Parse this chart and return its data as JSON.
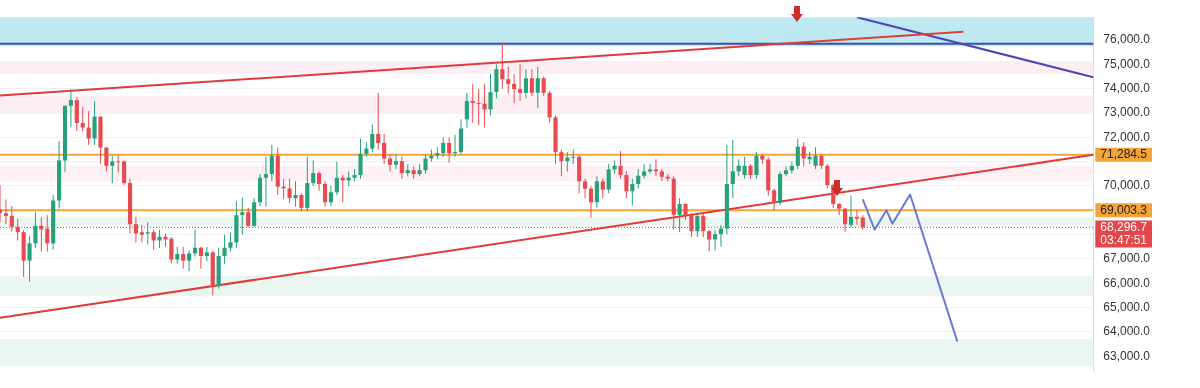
{
  "chart_data": {
    "type": "candlestick",
    "categories": [
      null,
      null,
      null,
      null,
      null,
      null,
      null,
      null,
      null,
      null,
      null,
      null,
      null,
      null,
      null,
      null,
      null,
      null,
      null,
      null,
      null,
      null,
      null,
      null,
      null,
      null,
      null,
      null,
      null,
      null,
      null,
      null,
      null,
      null,
      null,
      null,
      null,
      null,
      null,
      null,
      null,
      null,
      null,
      null,
      null,
      null,
      null,
      null,
      null,
      null,
      null,
      null,
      null,
      null,
      null,
      null,
      null,
      null,
      null,
      null,
      null,
      null,
      null,
      null,
      null,
      null,
      null,
      null,
      null,
      null,
      null,
      null,
      null,
      null,
      null,
      null,
      null,
      null,
      null,
      null,
      null,
      null,
      null,
      null,
      null,
      null,
      null,
      null,
      null,
      null,
      null,
      null,
      null,
      null,
      null,
      null,
      null,
      null,
      null,
      null,
      null,
      null,
      null,
      null,
      null,
      null,
      null,
      null,
      null,
      null,
      null,
      null,
      null,
      null,
      null,
      null,
      null,
      null,
      null,
      null,
      null,
      null,
      null,
      null,
      null,
      null,
      null,
      null,
      null,
      null,
      null,
      null,
      null,
      null,
      null,
      null,
      null,
      null,
      null,
      null,
      null,
      null,
      null,
      null,
      null,
      null,
      null,
      null,
      null,
      null,
      null,
      null,
      null,
      null,
      null,
      null,
      null,
      null,
      null,
      null,
      null,
      null,
      null,
      null,
      null,
      null,
      null,
      null,
      null,
      null,
      null,
      null,
      null,
      null,
      null,
      null,
      null,
      null,
      null,
      null,
      null,
      null,
      null,
      null,
      null,
      null
    ],
    "series": [
      {
        "type": "line",
        "color": "#e03c3c",
        "values": [
          73720,
          null,
          null,
          null,
          null,
          null,
          null,
          null,
          null,
          null,
          null,
          null,
          null,
          null,
          null,
          null,
          null,
          null,
          null,
          null,
          null,
          null,
          null,
          null,
          null,
          null,
          null,
          null,
          null,
          null,
          null,
          null,
          null,
          null,
          null,
          null,
          null,
          null,
          null,
          null,
          null,
          null,
          null,
          null,
          null,
          null,
          null,
          null,
          null,
          null,
          null,
          null,
          null,
          null,
          null,
          null,
          null,
          null,
          null,
          null,
          null,
          null,
          null,
          null,
          null,
          null,
          null,
          null,
          null,
          null,
          null,
          null,
          null,
          null,
          null,
          null,
          null,
          null,
          null,
          null,
          null,
          null,
          null,
          null,
          null,
          null,
          null,
          null,
          null,
          null,
          null,
          null,
          null,
          null,
          null,
          null,
          null,
          null,
          null,
          null,
          null,
          null,
          null,
          null,
          null,
          null,
          null,
          null,
          null,
          null,
          null,
          null,
          null,
          null,
          null,
          null,
          null,
          null,
          null,
          null,
          null,
          null,
          null,
          null,
          null,
          null,
          null,
          null,
          null,
          null,
          null,
          null,
          null,
          null,
          null,
          null,
          null,
          null,
          null,
          null,
          null,
          null,
          null,
          null,
          null,
          null,
          null,
          null,
          null,
          null,
          null,
          null,
          null,
          null,
          null,
          null,
          null,
          null,
          null,
          null,
          null,
          null,
          null,
          76340,
          null,
          null,
          null,
          null,
          null,
          null,
          null,
          null,
          null,
          null,
          null,
          null,
          null,
          null,
          null,
          null,
          null,
          null,
          null,
          null,
          null,
          null
        ]
      },
      {
        "type": "line",
        "color": "#e03c3c",
        "values": [
          64580,
          null,
          null,
          null,
          null,
          null,
          null,
          null,
          null,
          null,
          null,
          null,
          null,
          null,
          null,
          null,
          null,
          null,
          null,
          null,
          null,
          null,
          null,
          null,
          null,
          null,
          null,
          null,
          null,
          null,
          null,
          null,
          null,
          null,
          null,
          null,
          null,
          null,
          null,
          null,
          null,
          null,
          null,
          null,
          null,
          null,
          null,
          null,
          null,
          null,
          null,
          null,
          null,
          null,
          null,
          null,
          null,
          null,
          null,
          null,
          null,
          null,
          null,
          null,
          null,
          null,
          null,
          null,
          null,
          null,
          null,
          null,
          null,
          null,
          null,
          null,
          null,
          null,
          null,
          null,
          null,
          null,
          null,
          null,
          null,
          null,
          null,
          null,
          null,
          null,
          null,
          null,
          null,
          null,
          null,
          null,
          null,
          null,
          null,
          null,
          null,
          null,
          null,
          null,
          null,
          null,
          null,
          null,
          null,
          null,
          null,
          null,
          null,
          null,
          null,
          null,
          null,
          null,
          null,
          null,
          null,
          null,
          null,
          null,
          null,
          null,
          null,
          null,
          null,
          null,
          null,
          null,
          null,
          null,
          null,
          null,
          null,
          null,
          null,
          null,
          null,
          null,
          null,
          null,
          null,
          null,
          null,
          null,
          null,
          null,
          null,
          null,
          null,
          null,
          null,
          null,
          null,
          null,
          null,
          null,
          null,
          null,
          null,
          null,
          null,
          null,
          null,
          null,
          null,
          null,
          null,
          null,
          null,
          null,
          null,
          null,
          null,
          null,
          null,
          null,
          null,
          null,
          null,
          null,
          null,
          71280
        ]
      },
      {
        "type": "line",
        "color": "#5044b8",
        "values": [
          null,
          null,
          null,
          null,
          null,
          null,
          null,
          null,
          null,
          null,
          null,
          null,
          null,
          null,
          null,
          null,
          null,
          null,
          null,
          null,
          null,
          null,
          null,
          null,
          null,
          null,
          null,
          null,
          null,
          null,
          null,
          null,
          null,
          null,
          null,
          null,
          null,
          null,
          null,
          null,
          null,
          null,
          null,
          null,
          null,
          null,
          null,
          null,
          null,
          null,
          null,
          null,
          null,
          null,
          null,
          null,
          null,
          null,
          null,
          null,
          null,
          null,
          null,
          null,
          null,
          null,
          null,
          null,
          null,
          null,
          null,
          null,
          null,
          null,
          null,
          null,
          null,
          null,
          null,
          null,
          null,
          null,
          null,
          null,
          null,
          null,
          null,
          null,
          null,
          null,
          null,
          null,
          null,
          null,
          null,
          null,
          null,
          null,
          null,
          null,
          null,
          null,
          null,
          null,
          null,
          null,
          null,
          null,
          null,
          null,
          null,
          null,
          null,
          null,
          null,
          null,
          null,
          null,
          null,
          null,
          null,
          null,
          null,
          null,
          null,
          null,
          null,
          null,
          null,
          null,
          null,
          null,
          null,
          null,
          null,
          null,
          null,
          null,
          null,
          null,
          null,
          null,
          null,
          null,
          null,
          76940,
          null,
          null,
          null,
          null,
          null,
          null,
          null,
          null,
          null,
          null,
          null,
          null,
          null,
          null,
          null,
          null,
          null,
          null,
          null,
          null,
          null,
          null,
          null,
          null,
          null,
          null,
          null,
          null,
          null,
          null,
          null,
          null,
          null,
          null,
          null,
          null,
          null,
          null,
          null,
          74470
        ]
      },
      {
        "type": "line",
        "color": "#6a78d8",
        "values": [
          null,
          null,
          null,
          null,
          null,
          null,
          null,
          null,
          null,
          null,
          null,
          null,
          null,
          null,
          null,
          null,
          null,
          null,
          null,
          null,
          null,
          null,
          null,
          null,
          null,
          null,
          null,
          null,
          null,
          null,
          null,
          null,
          null,
          null,
          null,
          null,
          null,
          null,
          null,
          null,
          null,
          null,
          null,
          null,
          null,
          null,
          null,
          null,
          null,
          null,
          null,
          null,
          null,
          null,
          null,
          null,
          null,
          null,
          null,
          null,
          null,
          null,
          null,
          null,
          null,
          null,
          null,
          null,
          null,
          null,
          null,
          null,
          null,
          null,
          null,
          null,
          null,
          null,
          null,
          null,
          null,
          null,
          null,
          null,
          null,
          null,
          null,
          null,
          null,
          null,
          null,
          null,
          null,
          null,
          null,
          null,
          null,
          null,
          null,
          null,
          null,
          null,
          null,
          null,
          null,
          null,
          null,
          null,
          null,
          null,
          null,
          null,
          null,
          null,
          null,
          null,
          null,
          null,
          null,
          null,
          null,
          null,
          null,
          null,
          null,
          null,
          null,
          null,
          null,
          null,
          null,
          null,
          null,
          null,
          null,
          null,
          null,
          null,
          null,
          null,
          null,
          null,
          null,
          null,
          null,
          null,
          69450,
          null,
          68200,
          null,
          69000,
          68450,
          null,
          null,
          69650,
          null,
          null,
          null,
          null,
          null,
          null,
          null,
          63600,
          null,
          null,
          null,
          null,
          null,
          null,
          null,
          null,
          null,
          null,
          null,
          null,
          null,
          null,
          null,
          null,
          null,
          null,
          null,
          null,
          null,
          null,
          null
        ]
      },
      {
        "ohlc": [
          [
            69030,
            70040,
            68510,
            68880
          ],
          [
            68880,
            69440,
            68430,
            68770
          ],
          [
            68770,
            69180,
            68130,
            68320
          ],
          [
            68320,
            68660,
            67760,
            68100
          ],
          [
            68100,
            68200,
            66260,
            66930
          ],
          [
            66930,
            67950,
            66070,
            67640
          ],
          [
            67640,
            68920,
            67460,
            68360
          ],
          [
            68360,
            68700,
            67300,
            68210
          ],
          [
            68240,
            68800,
            67300,
            67640
          ],
          [
            67640,
            69630,
            67380,
            69400
          ],
          [
            69400,
            71840,
            69070,
            71050
          ],
          [
            71050,
            73300,
            70570,
            73300
          ],
          [
            73300,
            73980,
            72440,
            73530
          ],
          [
            73530,
            73640,
            72250,
            72590
          ],
          [
            72590,
            73260,
            72250,
            72400
          ],
          [
            72400,
            73080,
            71690,
            71950
          ],
          [
            71950,
            73490,
            71690,
            72850
          ],
          [
            72850,
            72850,
            70910,
            71580
          ],
          [
            71580,
            71580,
            70600,
            70830
          ],
          [
            70830,
            71240,
            70120,
            71010
          ],
          [
            71010,
            71280,
            70570,
            71000
          ],
          [
            71010,
            71050,
            70050,
            70120
          ],
          [
            70120,
            70300,
            68050,
            68430
          ],
          [
            68430,
            68730,
            67680,
            68050
          ],
          [
            68100,
            68400,
            67680,
            68000
          ],
          [
            68050,
            68500,
            67600,
            68100
          ],
          [
            68100,
            68210,
            67380,
            67760
          ],
          [
            67760,
            68200,
            67450,
            67910
          ],
          [
            67910,
            68060,
            67500,
            67800
          ],
          [
            67830,
            67900,
            66820,
            66970
          ],
          [
            66970,
            67500,
            66800,
            67200
          ],
          [
            67200,
            67500,
            66600,
            66930
          ],
          [
            66930,
            67350,
            66500,
            67230
          ],
          [
            67230,
            68210,
            67100,
            67460
          ],
          [
            67460,
            67500,
            66600,
            67120
          ],
          [
            67120,
            67500,
            66900,
            67270
          ],
          [
            67270,
            67350,
            65500,
            65880
          ],
          [
            65880,
            67460,
            65780,
            67120
          ],
          [
            67120,
            68000,
            66800,
            67460
          ],
          [
            67460,
            68100,
            67300,
            67680
          ],
          [
            67680,
            69370,
            67460,
            68800
          ],
          [
            68800,
            69520,
            68000,
            68920
          ],
          [
            68920,
            69100,
            68300,
            68360
          ],
          [
            68360,
            69500,
            68300,
            69330
          ],
          [
            69330,
            70490,
            69180,
            70340
          ],
          [
            70340,
            71200,
            69150,
            70490
          ],
          [
            70490,
            71690,
            70190,
            71240
          ],
          [
            71240,
            71580,
            69630,
            69970
          ],
          [
            69970,
            70300,
            69450,
            69900
          ],
          [
            69900,
            70300,
            69300,
            69500
          ],
          [
            69500,
            70200,
            69150,
            69630
          ],
          [
            69630,
            69700,
            68960,
            69100
          ],
          [
            69100,
            71200,
            68960,
            70120
          ],
          [
            70120,
            71050,
            70000,
            70530
          ],
          [
            70530,
            70600,
            69800,
            70080
          ],
          [
            70080,
            70200,
            69150,
            69330
          ],
          [
            69330,
            70000,
            69180,
            69740
          ],
          [
            69740,
            71000,
            69630,
            70340
          ],
          [
            70340,
            70450,
            69330,
            70230
          ],
          [
            70230,
            70600,
            70000,
            70340
          ],
          [
            70340,
            70700,
            70200,
            70450
          ],
          [
            70450,
            71950,
            70300,
            71320
          ],
          [
            71320,
            71800,
            71200,
            71540
          ],
          [
            71540,
            72520,
            71400,
            72140
          ],
          [
            72140,
            73830,
            71500,
            71770
          ],
          [
            71770,
            72140,
            70900,
            71130
          ],
          [
            71130,
            71300,
            70600,
            70870
          ],
          [
            70870,
            71300,
            70700,
            71020
          ],
          [
            71020,
            71200,
            70300,
            70530
          ],
          [
            70530,
            70900,
            70400,
            70650
          ],
          [
            70650,
            70800,
            70300,
            70490
          ],
          [
            70490,
            70900,
            70400,
            70650
          ],
          [
            70650,
            71300,
            70500,
            71130
          ],
          [
            71130,
            71500,
            71000,
            71240
          ],
          [
            71240,
            71600,
            71100,
            71350
          ],
          [
            71350,
            72000,
            71200,
            71770
          ],
          [
            71770,
            72000,
            70950,
            71350
          ],
          [
            71350,
            72100,
            71200,
            71400
          ],
          [
            71400,
            72740,
            71300,
            72360
          ],
          [
            72740,
            73830,
            72400,
            73490
          ],
          [
            73490,
            74200,
            72600,
            73410
          ],
          [
            73410,
            73980,
            72500,
            73380
          ],
          [
            73380,
            74200,
            72400,
            73150
          ],
          [
            73150,
            74610,
            72900,
            73860
          ],
          [
            73860,
            75000,
            73600,
            74800
          ],
          [
            74800,
            75900,
            74000,
            74390
          ],
          [
            74390,
            74900,
            73800,
            74200
          ],
          [
            74200,
            74600,
            73400,
            73980
          ],
          [
            73980,
            75000,
            73500,
            73830
          ],
          [
            73830,
            74800,
            73600,
            74430
          ],
          [
            74430,
            74800,
            73700,
            73830
          ],
          [
            73830,
            74900,
            73200,
            74430
          ],
          [
            74430,
            74500,
            73700,
            73830
          ],
          [
            73830,
            73900,
            72600,
            72820
          ],
          [
            72820,
            72900,
            70900,
            71390
          ],
          [
            71390,
            71500,
            70400,
            71020
          ],
          [
            71020,
            71400,
            70600,
            71170
          ],
          [
            71170,
            71500,
            70900,
            71200
          ],
          [
            71200,
            71300,
            69700,
            70190
          ],
          [
            70190,
            70300,
            69500,
            69890
          ],
          [
            69890,
            70000,
            68700,
            69330
          ],
          [
            69330,
            70400,
            69100,
            70190
          ],
          [
            70190,
            70300,
            69500,
            69850
          ],
          [
            69850,
            70900,
            69700,
            70680
          ],
          [
            70680,
            71050,
            70500,
            70830
          ],
          [
            70830,
            71440,
            70300,
            70450
          ],
          [
            70450,
            70600,
            69500,
            69780
          ],
          [
            69780,
            70300,
            69200,
            70080
          ],
          [
            70080,
            70700,
            69900,
            70420
          ],
          [
            70420,
            70900,
            70300,
            70600
          ],
          [
            70600,
            70900,
            70500,
            70680
          ],
          [
            70680,
            71100,
            70400,
            70600
          ],
          [
            70600,
            70700,
            70200,
            70380
          ],
          [
            70380,
            70500,
            70200,
            70300
          ],
          [
            70300,
            70400,
            68200,
            68810
          ],
          [
            68810,
            69500,
            68100,
            69260
          ],
          [
            69260,
            69300,
            68600,
            68810
          ],
          [
            68810,
            68900,
            67900,
            68140
          ],
          [
            68140,
            68900,
            67900,
            68770
          ],
          [
            68770,
            68900,
            67900,
            68140
          ],
          [
            68140,
            68200,
            67310,
            67800
          ],
          [
            67800,
            68200,
            67350,
            68020
          ],
          [
            68020,
            68400,
            67500,
            68250
          ],
          [
            68250,
            71700,
            68000,
            70080
          ],
          [
            70080,
            71900,
            69500,
            70600
          ],
          [
            70600,
            71100,
            70400,
            70830
          ],
          [
            70450,
            71200,
            70300,
            70830
          ],
          [
            70830,
            70900,
            70300,
            70450
          ],
          [
            70450,
            71400,
            70300,
            71240
          ],
          [
            71240,
            71300,
            70900,
            71090
          ],
          [
            71090,
            71200,
            69600,
            69820
          ],
          [
            69820,
            69900,
            68990,
            69300
          ],
          [
            69300,
            70600,
            69200,
            70490
          ],
          [
            70490,
            70800,
            70400,
            70640
          ],
          [
            70640,
            71000,
            70500,
            70830
          ],
          [
            70830,
            71950,
            70700,
            71620
          ],
          [
            71620,
            71800,
            70800,
            71130
          ],
          [
            71100,
            71400,
            70900,
            71200
          ],
          [
            70830,
            71600,
            70700,
            71240
          ],
          [
            71240,
            71300,
            70700,
            70830
          ],
          [
            70830,
            70900,
            69900,
            70040
          ],
          [
            70040,
            70100,
            69100,
            69260
          ],
          [
            69260,
            69300,
            68800,
            69070
          ],
          [
            69070,
            69100,
            68100,
            68430
          ],
          [
            68400,
            69600,
            68300,
            68730
          ],
          [
            68730,
            69000,
            68400,
            68650
          ],
          [
            68700,
            68800,
            68200,
            68297
          ],
          null,
          null,
          null,
          null,
          null,
          null,
          null,
          null,
          null,
          null,
          null,
          null,
          null,
          null,
          null,
          null,
          null,
          null,
          null,
          null,
          null,
          null,
          null,
          null,
          null,
          null,
          null,
          null,
          null,
          null,
          null,
          null,
          null,
          null,
          null,
          null,
          null,
          null,
          null
        ],
        "colors": [
          "#e84a4f",
          "#e84a4f",
          "#e84a4f",
          "#e84a4f",
          "#e84a4f",
          "#26a17b",
          "#26a17b",
          "#e84a4f",
          "#e84a4f",
          "#26a17b",
          "#26a17b",
          "#26a17b",
          "#26a17b",
          "#e84a4f",
          "#e84a4f",
          "#e84a4f",
          "#26a17b",
          "#e84a4f",
          "#e84a4f",
          "#26a17b",
          "#e84a4f",
          "#e84a4f",
          "#e84a4f",
          "#e84a4f",
          "#e84a4f",
          "#26a17b",
          "#e84a4f",
          "#26a17b",
          "#e84a4f",
          "#e84a4f",
          "#26a17b",
          "#e84a4f",
          "#26a17b",
          "#26a17b",
          "#e84a4f",
          "#26a17b",
          "#e84a4f",
          "#26a17b",
          "#26a17b",
          "#26a17b",
          "#26a17b",
          "#26a17b",
          "#e84a4f",
          "#26a17b",
          "#26a17b",
          "#26a17b",
          "#26a17b",
          "#e84a4f",
          "#e84a4f",
          "#e84a4f",
          "#26a17b",
          "#e84a4f",
          "#26a17b",
          "#26a17b",
          "#e84a4f",
          "#e84a4f",
          "#26a17b",
          "#26a17b",
          "#e84a4f",
          "#26a17b",
          "#26a17b",
          "#26a17b",
          "#26a17b",
          "#26a17b",
          "#e84a4f",
          "#e84a4f",
          "#e84a4f",
          "#26a17b",
          "#e84a4f",
          "#26a17b",
          "#e84a4f",
          "#26a17b",
          "#26a17b",
          "#26a17b",
          "#26a17b",
          "#26a17b",
          "#e84a4f",
          "#26a17b",
          "#26a17b",
          "#26a17b",
          "#e84a4f",
          "#e84a4f",
          "#e84a4f",
          "#26a17b",
          "#26a17b",
          "#e84a4f",
          "#e84a4f",
          "#e84a4f",
          "#e84a4f",
          "#26a17b",
          "#e84a4f",
          "#26a17b",
          "#e84a4f",
          "#e84a4f",
          "#e84a4f",
          "#e84a4f",
          "#26a17b",
          "#26a17b",
          "#e84a4f",
          "#e84a4f",
          "#e84a4f",
          "#26a17b",
          "#e84a4f",
          "#26a17b",
          "#26a17b",
          "#e84a4f",
          "#e84a4f",
          "#26a17b",
          "#26a17b",
          "#26a17b",
          "#26a17b",
          "#e84a4f",
          "#e84a4f",
          "#e84a4f",
          "#e84a4f",
          "#26a17b",
          "#e84a4f",
          "#e84a4f",
          "#26a17b",
          "#e84a4f",
          "#e84a4f",
          "#26a17b",
          "#26a17b",
          "#26a17b",
          "#26a17b",
          "#26a17b",
          "#26a17b",
          "#e84a4f",
          "#26a17b",
          "#e84a4f",
          "#e84a4f",
          "#e84a4f",
          "#26a17b",
          "#26a17b",
          "#26a17b",
          "#26a17b",
          "#e84a4f",
          "#26a17b",
          "#26a17b",
          "#e84a4f",
          "#e84a4f",
          "#e84a4f",
          "#e84a4f",
          "#e84a4f",
          "#26a17b",
          "#e84a4f",
          "#e84a4f",
          null,
          null,
          null,
          null,
          null,
          null,
          null,
          null,
          null,
          null,
          null,
          null,
          null,
          null,
          null,
          null,
          null,
          null,
          null,
          null,
          null,
          null,
          null,
          null,
          null,
          null,
          null,
          null,
          null,
          null,
          null,
          null,
          null,
          null,
          null,
          null,
          null,
          null,
          null
        ]
      }
    ],
    "ylim": [
      62400,
      76940
    ],
    "yticks": [
      {
        "value": 63000,
        "label": "63,000.0"
      },
      {
        "value": 64000,
        "label": "64,000.0"
      },
      {
        "value": 65000,
        "label": "65,000.0"
      },
      {
        "value": 66000,
        "label": "66,000.0"
      },
      {
        "value": 67000,
        "label": "67,000.0"
      },
      {
        "value": 68000,
        "label": null
      },
      {
        "value": 69000,
        "label": null
      },
      {
        "value": 70000,
        "label": "70,000.0"
      },
      {
        "value": 71000,
        "label": null
      },
      {
        "value": 72000,
        "label": "72,000.0"
      },
      {
        "value": 73000,
        "label": "73,000.0"
      },
      {
        "value": 74000,
        "label": "74,000.0"
      },
      {
        "value": 75000,
        "label": "75,000.0"
      },
      {
        "value": 76000,
        "label": "76,000.0"
      }
    ],
    "tick_labels": "y",
    "grid": "y",
    "legend": false,
    "bands": [
      {
        "axis": "y",
        "from": 75750,
        "to": 76940,
        "color": "#bfe9f1"
      },
      {
        "axis": "y",
        "from": 74610,
        "to": 75140,
        "color": "#fdeef3"
      },
      {
        "axis": "y",
        "from": 72970,
        "to": 73715,
        "color": "#fdeef3"
      },
      {
        "axis": "y",
        "from": 70190,
        "to": 70830,
        "color": "#fdf1f5"
      },
      {
        "axis": "y",
        "from": 68320,
        "to": 68700,
        "color": "#eaf6ef"
      },
      {
        "axis": "y",
        "from": 65480,
        "to": 66300,
        "color": "#eaf6ef"
      },
      {
        "axis": "y",
        "from": 62590,
        "to": 63700,
        "color": "#eaf6ef"
      }
    ],
    "ref_lines": [
      {
        "axis": "y",
        "value": 75850,
        "color": "#3f4fb0"
      },
      {
        "axis": "y",
        "value": 71284.5,
        "label": "71,284.5",
        "color": "#f5a43a"
      },
      {
        "axis": "y",
        "value": 69003.3,
        "label": "69,003.3",
        "color": "#f5a43a"
      },
      {
        "axis": "y",
        "value": 68296.7,
        "label": "68,296.7",
        "color": "#e3474b",
        "line_style": "dotted"
      }
    ],
    "annotations": [
      "03:47:51"
    ]
  }
}
